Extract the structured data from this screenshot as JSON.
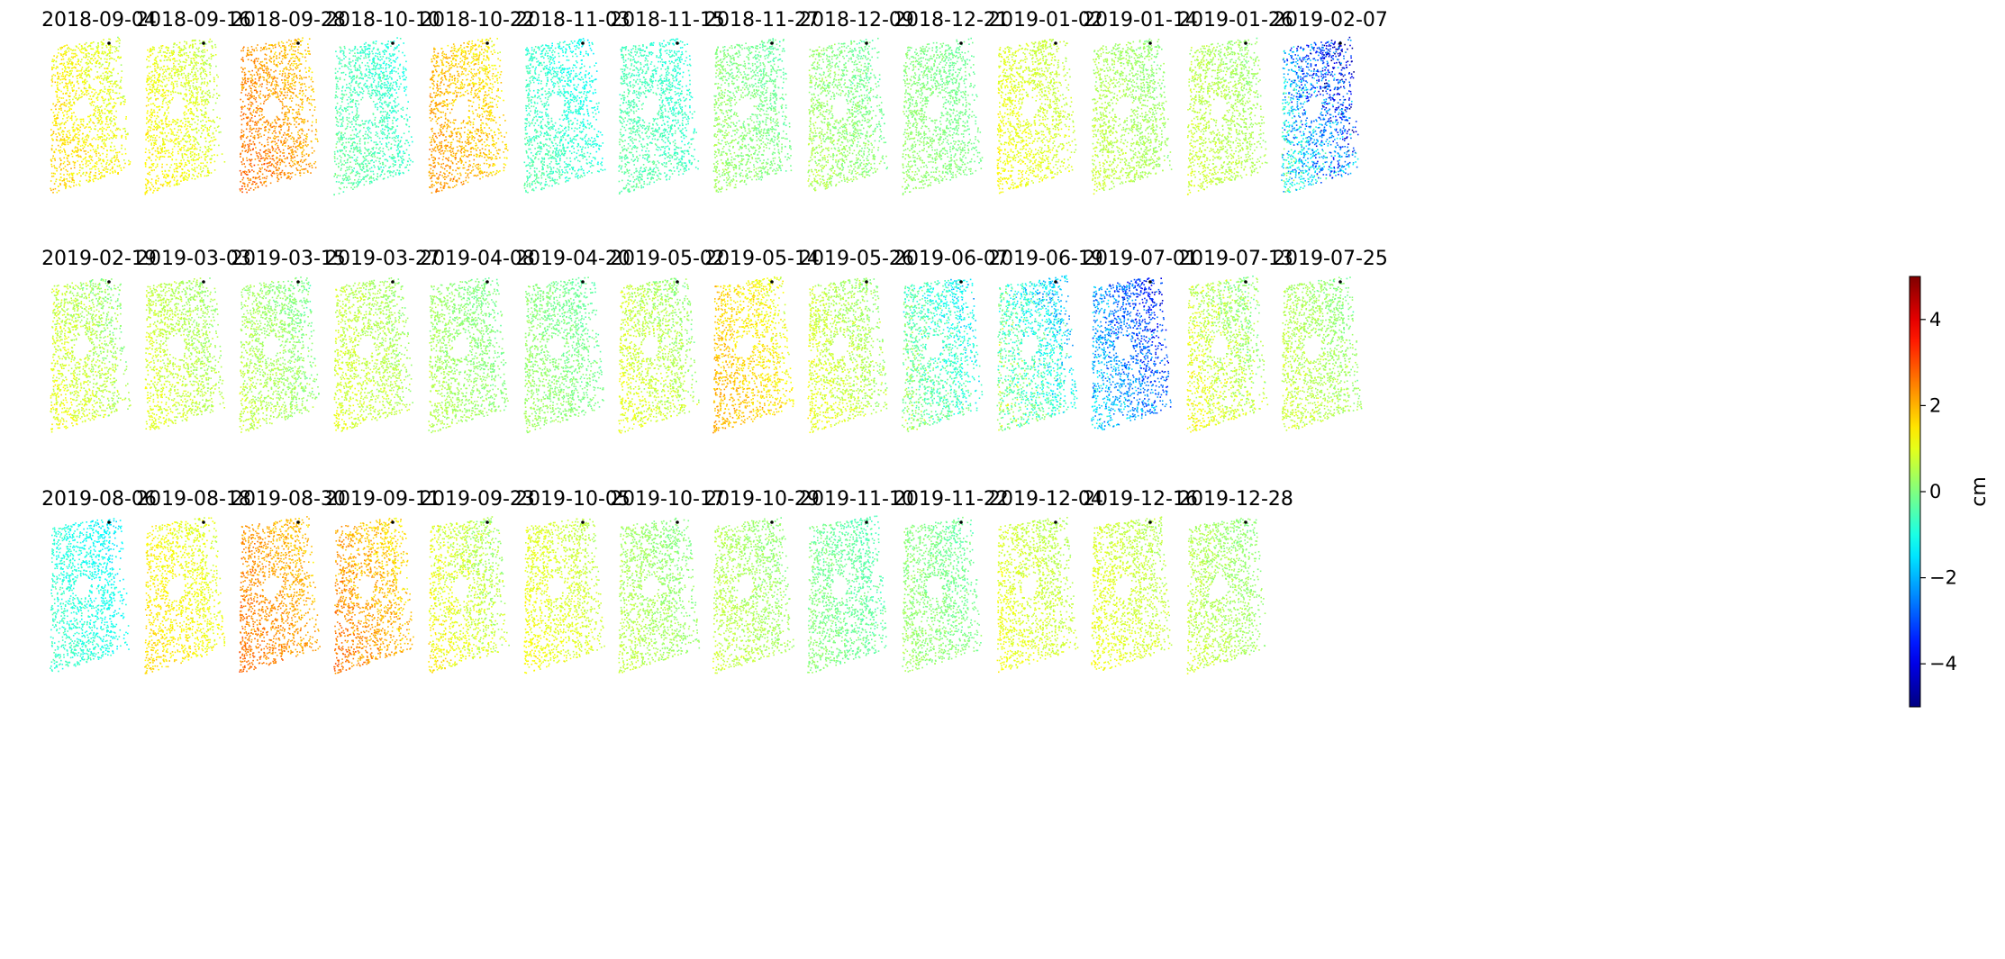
{
  "chart_data": {
    "type": "heatmap",
    "description_kind": "small-multiples displacement maps",
    "panels": [
      {
        "date": "2018-09-04",
        "mean": 1.2,
        "spread": 0.7
      },
      {
        "date": "2018-09-16",
        "mean": 1.0,
        "spread": 0.6
      },
      {
        "date": "2018-09-28",
        "mean": 2.2,
        "spread": 0.8
      },
      {
        "date": "2018-10-10",
        "mean": -0.6,
        "spread": 0.6
      },
      {
        "date": "2018-10-22",
        "mean": 1.8,
        "spread": 0.8
      },
      {
        "date": "2018-11-03",
        "mean": -0.8,
        "spread": 0.6
      },
      {
        "date": "2018-11-15",
        "mean": -0.6,
        "spread": 0.5
      },
      {
        "date": "2018-11-27",
        "mean": 0.0,
        "spread": 0.5
      },
      {
        "date": "2018-12-09",
        "mean": 0.1,
        "spread": 0.6
      },
      {
        "date": "2018-12-21",
        "mean": 0.0,
        "spread": 0.4
      },
      {
        "date": "2019-01-02",
        "mean": 0.9,
        "spread": 0.5
      },
      {
        "date": "2019-01-14",
        "mean": 0.4,
        "spread": 0.5
      },
      {
        "date": "2019-01-26",
        "mean": 0.5,
        "spread": 0.5
      },
      {
        "date": "2019-02-07",
        "mean": -2.5,
        "spread": 2.5
      },
      {
        "date": "2019-02-19",
        "mean": 0.6,
        "spread": 0.8
      },
      {
        "date": "2019-03-03",
        "mean": 0.6,
        "spread": 0.6
      },
      {
        "date": "2019-03-15",
        "mean": 0.3,
        "spread": 0.6
      },
      {
        "date": "2019-03-27",
        "mean": 0.6,
        "spread": 0.6
      },
      {
        "date": "2019-04-08",
        "mean": 0.2,
        "spread": 0.5
      },
      {
        "date": "2019-04-20",
        "mean": 0.0,
        "spread": 0.5
      },
      {
        "date": "2019-05-02",
        "mean": 0.6,
        "spread": 0.7
      },
      {
        "date": "2019-05-14",
        "mean": 1.5,
        "spread": 0.8
      },
      {
        "date": "2019-05-26",
        "mean": 0.6,
        "spread": 0.7
      },
      {
        "date": "2019-06-07",
        "mean": -0.6,
        "spread": 1.2
      },
      {
        "date": "2019-06-19",
        "mean": -0.8,
        "spread": 1.6
      },
      {
        "date": "2019-07-01",
        "mean": -2.6,
        "spread": 1.6
      },
      {
        "date": "2019-07-13",
        "mean": 0.6,
        "spread": 0.9
      },
      {
        "date": "2019-07-25",
        "mean": 0.4,
        "spread": 0.6
      },
      {
        "date": "2019-08-06",
        "mean": -1.0,
        "spread": 0.6
      },
      {
        "date": "2019-08-18",
        "mean": 1.2,
        "spread": 0.6
      },
      {
        "date": "2019-08-30",
        "mean": 2.2,
        "spread": 0.7
      },
      {
        "date": "2019-09-11",
        "mean": 2.0,
        "spread": 0.9
      },
      {
        "date": "2019-09-23",
        "mean": 0.8,
        "spread": 0.8
      },
      {
        "date": "2019-10-05",
        "mean": 0.9,
        "spread": 0.5
      },
      {
        "date": "2019-10-17",
        "mean": 0.3,
        "spread": 0.5
      },
      {
        "date": "2019-10-29",
        "mean": 0.4,
        "spread": 0.5
      },
      {
        "date": "2019-11-10",
        "mean": -0.2,
        "spread": 0.5
      },
      {
        "date": "2019-11-22",
        "mean": 0.0,
        "spread": 0.5
      },
      {
        "date": "2019-12-04",
        "mean": 0.8,
        "spread": 0.5
      },
      {
        "date": "2019-12-16",
        "mean": 0.8,
        "spread": 0.5
      },
      {
        "date": "2019-12-28",
        "mean": 0.4,
        "spread": 0.5
      }
    ],
    "colorbar": {
      "label": "cm",
      "range": [
        -5,
        5
      ],
      "ticks": [
        4,
        2,
        0,
        -2,
        -4
      ],
      "tick_labels": [
        "4",
        "2",
        "0",
        "−2",
        "−4"
      ],
      "colormap": "jet"
    },
    "grid": false,
    "axes_visible": false
  },
  "colors": {
    "jet_stops": [
      "#00007f",
      "#0000ff",
      "#007fff",
      "#00ffff",
      "#7fff7f",
      "#ffff00",
      "#ff7f00",
      "#ff0000",
      "#7f0000"
    ]
  }
}
